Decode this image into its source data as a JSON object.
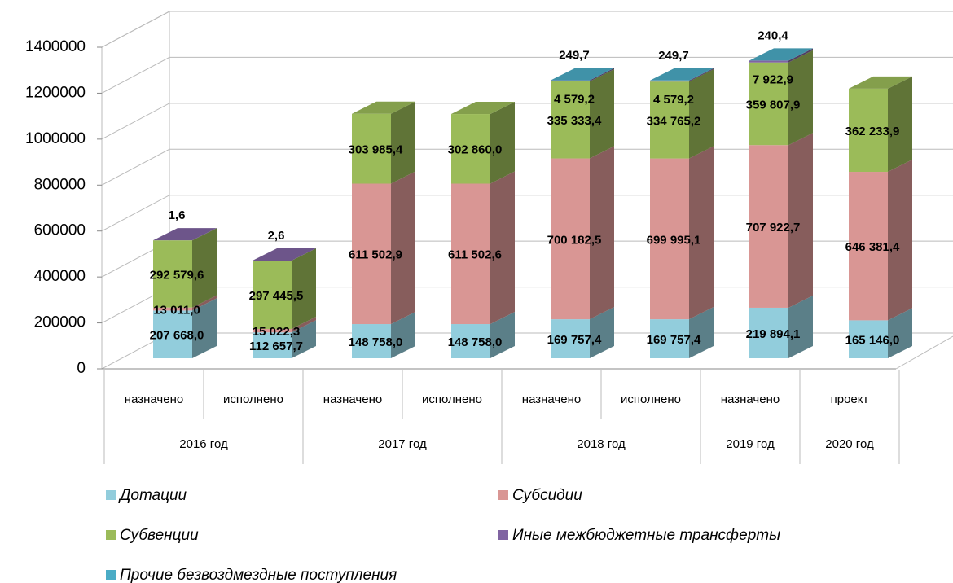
{
  "chart_data": {
    "type": "bar3d_stacked",
    "categories": [
      "назначено",
      "исполнено",
      "назначено",
      "исполнено",
      "назначено",
      "исполнено",
      "назначено",
      "проект"
    ],
    "group_labels": [
      "2016 год",
      null,
      "2017 год",
      null,
      "2018 год",
      null,
      "2019 год",
      "2020 год"
    ],
    "series": [
      {
        "name": "Дотации",
        "color": "#92cddc",
        "values": [
          207668.0,
          112657.7,
          148758.0,
          148758.0,
          169757.4,
          169757.4,
          219894.1,
          165146.0
        ],
        "value_labels": [
          "207 668,0",
          "112 657,7",
          "148 758,0",
          "148 758,0",
          "169 757,4",
          "169 757,4",
          "219 894,1",
          "165 146,0"
        ]
      },
      {
        "name": "Субсидии",
        "color": "#d99694",
        "values": [
          13011.0,
          15022.3,
          611502.9,
          611502.6,
          700182.5,
          699995.1,
          707922.7,
          646381.4
        ],
        "value_labels": [
          "13 011,0",
          "15 022,3",
          "611 502,9",
          "611 502,6",
          "700 182,5",
          "699 995,1",
          "707 922,7",
          "646 381,4"
        ]
      },
      {
        "name": "Субвенции",
        "color": "#9bbb59",
        "values": [
          292579.6,
          297445.5,
          303985.4,
          302860.0,
          335333.4,
          334765.2,
          359807.9,
          362233.9
        ],
        "value_labels": [
          "292 579,6",
          "297 445,5",
          "303 985,4",
          "302 860,0",
          "335 333,4",
          "334 765,2",
          "359 807,9",
          "362 233,9"
        ]
      },
      {
        "name": "Иные межбюджетные трансферты",
        "color": "#8064a2",
        "values": [
          1.6,
          2.6,
          null,
          null,
          4579.2,
          4579.2,
          7922.9,
          null
        ],
        "value_labels": [
          "1,6",
          "2,6",
          null,
          null,
          "4 579,2",
          "4 579,2",
          "7 922,9",
          null
        ]
      },
      {
        "name": "Прочие безвоздмездные поступления",
        "color": "#4bacc6",
        "values": [
          null,
          null,
          null,
          null,
          249.7,
          249.7,
          240.4,
          null
        ],
        "value_labels": [
          null,
          null,
          null,
          null,
          "249,7",
          "249,7",
          "240,4",
          null
        ]
      }
    ],
    "ylim": [
      0,
      1400000
    ],
    "yticks": [
      0,
      200000,
      400000,
      600000,
      800000,
      1000000,
      1200000,
      1400000
    ],
    "grid": true
  }
}
